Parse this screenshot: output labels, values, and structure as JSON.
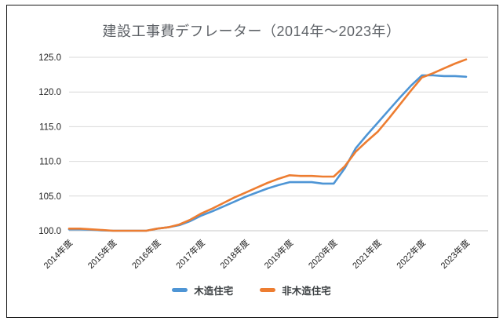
{
  "window": {
    "background": "#ffffff",
    "frame_border_color": "#161616"
  },
  "chart_data": {
    "type": "line",
    "title": "建設工事費デフレーター（2014年～2023年）",
    "title_color": "#5f6368",
    "xlabel": "",
    "ylabel": "",
    "grid": true,
    "gridline_color": "#d9d9d9",
    "axis_line_color": "#c7c7c7",
    "tick_label_color": "#222222",
    "legend_position": "bottom",
    "x_axis": {
      "tick_labels": [
        "2014年度",
        "2015年度",
        "2016年度",
        "2017年度",
        "2018年度",
        "2019年度",
        "2020年度",
        "2021年度",
        "2022年度",
        "2023年度"
      ],
      "tick_values": [
        2014,
        2015,
        2016,
        2017,
        2018,
        2019,
        2020,
        2021,
        2022,
        2023
      ],
      "label_rotation_deg": -45
    },
    "y_axis": {
      "tick_labels": [
        "100.0",
        "105.0",
        "110.0",
        "115.0",
        "120.0",
        "125.0"
      ],
      "tick_values": [
        100,
        105,
        110,
        115,
        120,
        125
      ],
      "range": [
        100,
        125
      ]
    },
    "x_quarterly": [
      2014.0,
      2014.25,
      2014.5,
      2014.75,
      2015.0,
      2015.25,
      2015.5,
      2015.75,
      2016.0,
      2016.25,
      2016.5,
      2016.75,
      2017.0,
      2017.25,
      2017.5,
      2017.75,
      2018.0,
      2018.25,
      2018.5,
      2018.75,
      2019.0,
      2019.25,
      2019.5,
      2019.75,
      2020.0,
      2020.25,
      2020.5,
      2020.75,
      2021.0,
      2021.25,
      2021.5,
      2021.75,
      2022.0,
      2022.25,
      2022.5,
      2022.75,
      2023.0
    ],
    "series": [
      {
        "name": "木造住宅",
        "color": "#4E95D5",
        "values": [
          100.2,
          100.2,
          100.15,
          100.05,
          100.0,
          100.0,
          100.0,
          100.0,
          100.3,
          100.5,
          100.8,
          101.4,
          102.2,
          102.8,
          103.5,
          104.2,
          104.9,
          105.5,
          106.1,
          106.6,
          107.0,
          107.0,
          107.0,
          106.8,
          106.8,
          109.0,
          111.9,
          113.8,
          115.6,
          117.4,
          119.2,
          120.9,
          122.4,
          122.4,
          122.3,
          122.3,
          122.2
        ],
        "annual_at_ticks": [
          100.2,
          100.0,
          100.3,
          102.2,
          104.9,
          107.0,
          106.8,
          115.6,
          122.4,
          122.2
        ]
      },
      {
        "name": "非木造住宅",
        "color": "#ED7D31",
        "values": [
          100.3,
          100.3,
          100.2,
          100.1,
          100.0,
          100.0,
          100.0,
          100.0,
          100.3,
          100.5,
          100.9,
          101.6,
          102.5,
          103.2,
          104.0,
          104.8,
          105.5,
          106.2,
          106.9,
          107.5,
          108.0,
          107.9,
          107.9,
          107.8,
          107.8,
          109.3,
          111.4,
          112.9,
          114.3,
          116.2,
          118.2,
          120.2,
          122.1,
          122.7,
          123.4,
          124.1,
          124.7
        ],
        "annual_at_ticks": [
          100.3,
          100.0,
          100.3,
          102.5,
          105.5,
          108.0,
          107.8,
          114.3,
          122.1,
          124.7
        ]
      }
    ]
  }
}
